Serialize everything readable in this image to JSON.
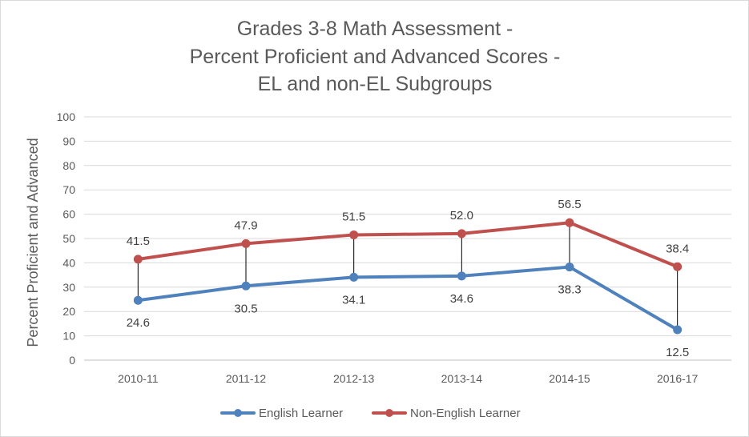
{
  "chart_data": {
    "type": "line",
    "title_lines": [
      "Grades 3-8 Math Assessment -",
      "Percent Proficient and Advanced Scores -",
      "EL and non-EL Subgroups"
    ],
    "ylabel": "Percent Proficient and Advanced",
    "xlabel": "",
    "categories": [
      "2010-11",
      "2011-12",
      "2012-13",
      "2013-14",
      "2014-15",
      "2016-17"
    ],
    "ylim": [
      0,
      100
    ],
    "yticks": [
      "0",
      "10",
      "20",
      "30",
      "40",
      "50",
      "60",
      "70",
      "80",
      "90",
      "100"
    ],
    "grid": true,
    "legend_position": "bottom",
    "high_low_lines": true,
    "series": [
      {
        "name": "English Learner",
        "color": "#4f81bd",
        "values": [
          24.6,
          30.5,
          34.1,
          34.6,
          38.3,
          12.5
        ],
        "labels": [
          "24.6",
          "30.5",
          "34.1",
          "34.6",
          "38.3",
          "12.5"
        ],
        "label_position": "below"
      },
      {
        "name": "Non-English Learner",
        "color": "#c0504d",
        "values": [
          41.5,
          47.9,
          51.5,
          52.0,
          56.5,
          38.4
        ],
        "labels": [
          "41.5",
          "47.9",
          "51.5",
          "52.0",
          "56.5",
          "38.4"
        ],
        "label_position": "above"
      }
    ]
  }
}
